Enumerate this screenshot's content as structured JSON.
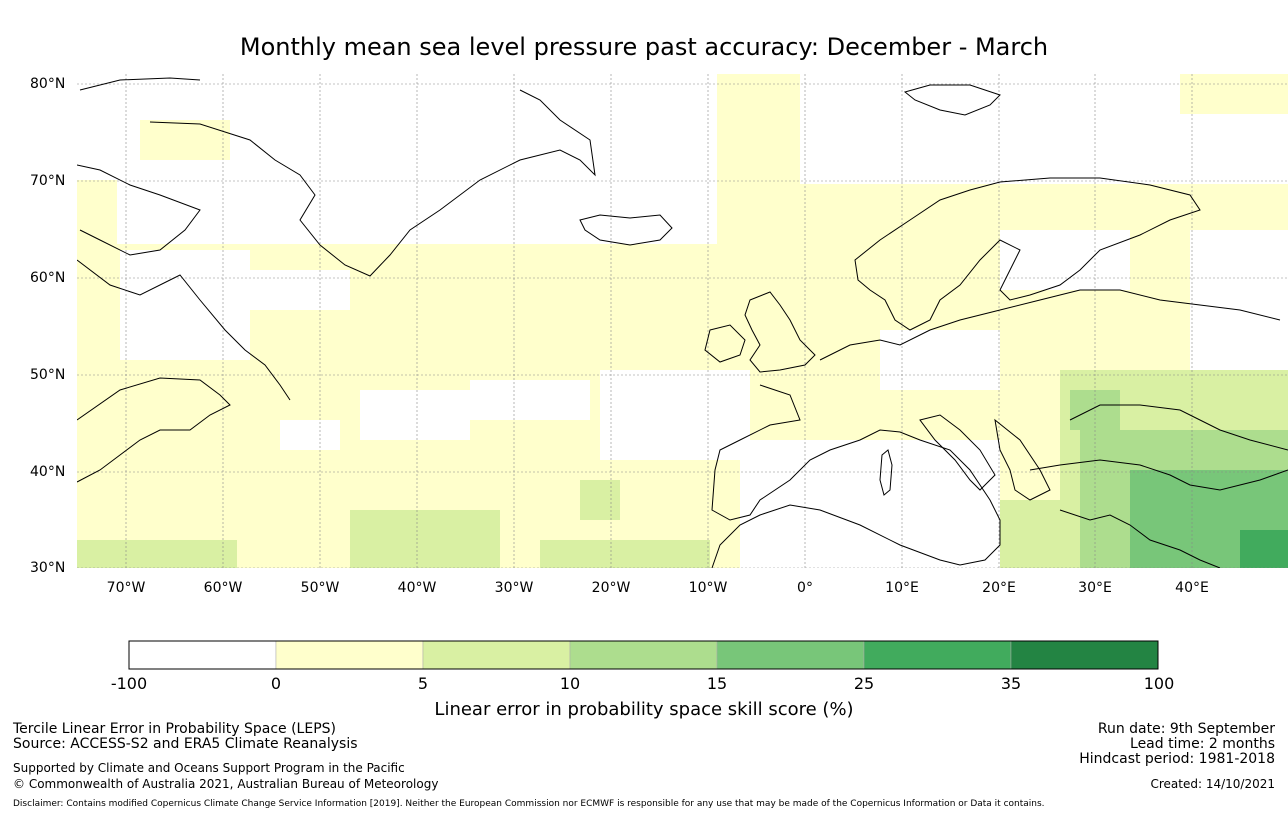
{
  "title": "Monthly mean sea level pressure past accuracy: December - March",
  "map": {
    "lat_labels": [
      "80°N",
      "70°N",
      "60°N",
      "50°N",
      "40°N",
      "30°N"
    ],
    "lat_values": [
      80,
      70,
      60,
      50,
      40,
      30
    ],
    "lon_labels": [
      "70°W",
      "60°W",
      "50°W",
      "40°W",
      "30°W",
      "20°W",
      "10°W",
      "0°",
      "10°E",
      "20°E",
      "30°E",
      "40°E"
    ],
    "lon_values": [
      -70,
      -60,
      -50,
      -40,
      -30,
      -20,
      -10,
      0,
      10,
      20,
      30,
      40
    ],
    "lon_range": [
      -75,
      50
    ],
    "lat_range": [
      30,
      81
    ],
    "gridlines": true,
    "coastline_color": "#000000"
  },
  "colorbar": {
    "ticks": [
      "-100",
      "0",
      "5",
      "10",
      "15",
      "25",
      "35",
      "100"
    ],
    "colors": [
      "#ffffff",
      "#ffffcc",
      "#d9f0a3",
      "#addd8e",
      "#78c679",
      "#41ab5d",
      "#238443"
    ],
    "label": "Linear error in probability space skill score (%)"
  },
  "footer": {
    "left_line1": "Tercile Linear Error in Probability Space (LEPS)",
    "left_line2": "Source: ACCESS-S2 and ERA5 Climate Reanalysis",
    "left_line3": "Supported by Climate and Oceans Support Program in the Pacific",
    "left_line4": "© Commonwealth of Australia 2021, Australian Bureau of Meteorology",
    "right_line1": "Run date: 9th September",
    "right_line2": "Lead time: 2 months",
    "right_line3": "Hindcast period: 1981-2018",
    "right_line4": "Created: 14/10/2021",
    "disclaimer": "Disclaimer: Contains modified Copernicus Climate Change Service Information [2019]. Neither the European Commission nor ECMWF is responsible for any use that may be made of the Copernicus Information or Data it contains."
  }
}
